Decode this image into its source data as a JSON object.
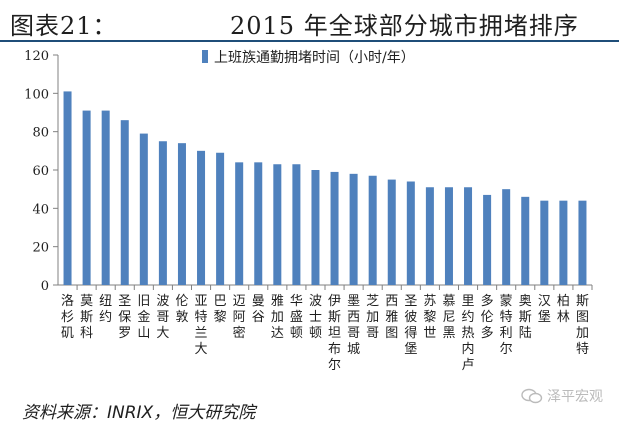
{
  "figure_label": "图表21：",
  "figure_title": "2015 年全球部分城市拥堵排序",
  "source": "资料来源：INRIX，恒大研究院",
  "watermark": "泽平宏观",
  "colors": {
    "bar": "#4f81bd",
    "axis": "#808080",
    "text": "#1f1f1f"
  },
  "chart_data": {
    "type": "bar",
    "title": "",
    "xlabel": "",
    "ylabel": "",
    "ylim": [
      0,
      120
    ],
    "yticks": [
      0,
      20,
      40,
      60,
      80,
      100,
      120
    ],
    "grid": false,
    "legend": {
      "label": "上班族通勤拥堵时间（小时/年）",
      "position": "top-center"
    },
    "categories": [
      "洛杉矶",
      "莫斯科",
      "纽约",
      "圣保罗",
      "旧金山",
      "波哥大",
      "伦敦",
      "亚特兰大",
      "巴黎",
      "迈阿密",
      "曼谷",
      "雅加达",
      "华盛顿",
      "波士顿",
      "伊斯坦布尔",
      "墨西哥城",
      "芝加哥",
      "西雅图",
      "圣彼得堡",
      "苏黎世",
      "慕尼黑",
      "里约热内卢",
      "多伦多",
      "蒙特利尔",
      "奥斯陆",
      "汉堡",
      "柏林",
      "斯图加特"
    ],
    "series": [
      {
        "name": "上班族通勤拥堵时间（小时/年）",
        "values": [
          101,
          91,
          91,
          86,
          79,
          75,
          74,
          70,
          69,
          64,
          64,
          63,
          63,
          60,
          59,
          58,
          57,
          55,
          54,
          51,
          51,
          51,
          47,
          50,
          46,
          44,
          44,
          44
        ]
      }
    ]
  }
}
